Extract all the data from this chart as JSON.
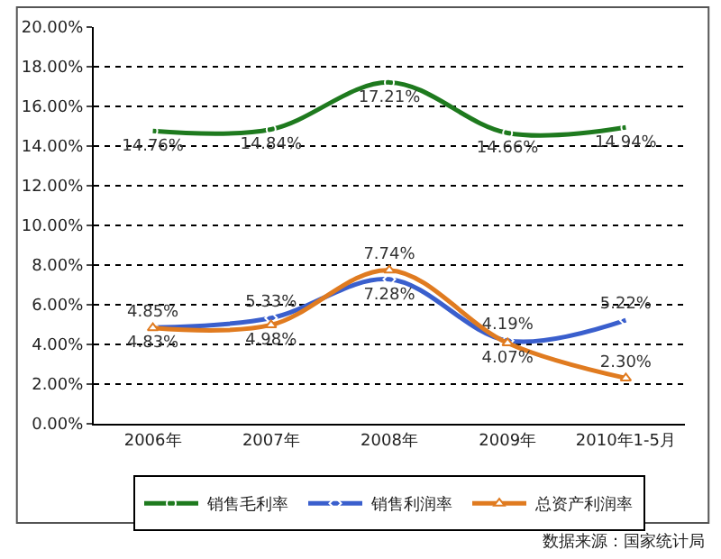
{
  "chart_data": {
    "type": "line",
    "categories": [
      "2006年",
      "2007年",
      "2008年",
      "2009年",
      "2010年1-5月"
    ],
    "series": [
      {
        "name": "销售毛利率",
        "color": "#1e7a1e",
        "marker": "circle",
        "values": [
          14.76,
          14.84,
          17.21,
          14.66,
          14.94
        ],
        "value_labels": [
          "14.76%",
          "14.84%",
          "17.21%",
          "14.66%",
          "14.94%"
        ]
      },
      {
        "name": "销售利润率",
        "color": "#3a5fcd",
        "marker": "diamond",
        "values": [
          4.85,
          5.33,
          7.28,
          4.19,
          5.22
        ],
        "value_labels": [
          "4.85%",
          "5.33%",
          "7.28%",
          "4.19%",
          "5.22%"
        ]
      },
      {
        "name": "总资产利润率",
        "color": "#e07b20",
        "marker": "triangle",
        "values": [
          4.83,
          4.98,
          7.74,
          4.07,
          2.3
        ],
        "value_labels": [
          "4.83%",
          "4.98%",
          "7.74%",
          "4.07%",
          "2.30%"
        ]
      }
    ],
    "ylim": [
      0,
      20
    ],
    "yticks": [
      {
        "value": 0,
        "label": "0.00%"
      },
      {
        "value": 2,
        "label": "2.00%"
      },
      {
        "value": 4,
        "label": "4.00%"
      },
      {
        "value": 6,
        "label": "6.00%"
      },
      {
        "value": 8,
        "label": "8.00%"
      },
      {
        "value": 10,
        "label": "10.00%"
      },
      {
        "value": 12,
        "label": "12.00%"
      },
      {
        "value": 14,
        "label": "14.00%"
      },
      {
        "value": 16,
        "label": "16.00%"
      },
      {
        "value": 18,
        "label": "18.00%"
      },
      {
        "value": 20,
        "label": "20.00%"
      }
    ],
    "grid": "y",
    "legend": "bottom",
    "line_style": "solid",
    "annotations": [
      "数据来源：国家统计局"
    ]
  }
}
